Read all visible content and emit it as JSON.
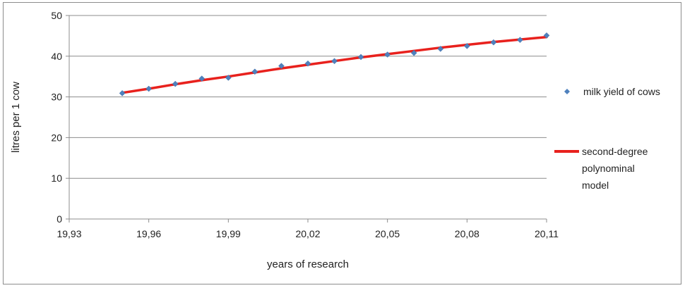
{
  "chart_data": {
    "type": "scatter",
    "xlabel": "years of research",
    "ylabel": "litres per 1 cow",
    "xlim": [
      19.93,
      20.11
    ],
    "ylim": [
      0,
      50
    ],
    "x_ticks": [
      "19,93",
      "19,96",
      "19,99",
      "20,02",
      "20,05",
      "20,08",
      "20,11"
    ],
    "y_ticks": [
      "0",
      "10",
      "20",
      "30",
      "40",
      "50"
    ],
    "grid": "horizontal",
    "legend_position": "right",
    "series": [
      {
        "name": "milk yield of cows",
        "kind": "scatter",
        "color": "#4f81bd",
        "x": [
          19.95,
          19.96,
          19.97,
          19.98,
          19.99,
          20.0,
          20.01,
          20.02,
          20.03,
          20.04,
          20.05,
          20.06,
          20.07,
          20.08,
          20.09,
          20.1,
          20.11
        ],
        "y": [
          30.9,
          32.0,
          33.2,
          34.5,
          34.7,
          36.2,
          37.6,
          38.2,
          38.8,
          39.8,
          40.4,
          40.8,
          41.8,
          42.5,
          43.4,
          44.0,
          45.1
        ]
      },
      {
        "name": "second-degree polynominal model",
        "name_lines": [
          "second-degree",
          "polynominal",
          "model"
        ],
        "kind": "line",
        "color": "#e8211d",
        "x": [
          19.95,
          19.96,
          19.97,
          19.98,
          19.99,
          20.0,
          20.01,
          20.02,
          20.03,
          20.04,
          20.05,
          20.06,
          20.07,
          20.08,
          20.09,
          20.1,
          20.11
        ],
        "y": [
          31.0,
          32.0,
          33.1,
          34.1,
          35.0,
          36.0,
          37.0,
          37.9,
          38.8,
          39.7,
          40.5,
          41.3,
          42.1,
          42.8,
          43.5,
          44.1,
          44.7
        ]
      }
    ]
  }
}
